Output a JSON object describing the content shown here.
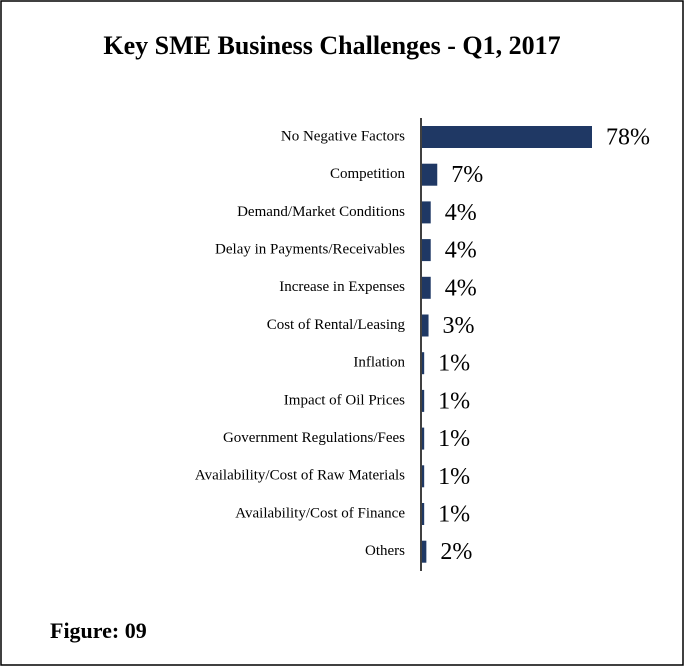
{
  "chart_data": {
    "type": "bar",
    "orientation": "horizontal",
    "title": "Key SME Business Challenges  - Q1, 2017",
    "categories": [
      "No Negative Factors",
      "Competition",
      "Demand/Market Conditions",
      "Delay in Payments/Receivables",
      "Increase in Expenses",
      "Cost of Rental/Leasing",
      "Inflation",
      "Impact of Oil Prices",
      "Government Regulations/Fees",
      "Availability/Cost of Raw Materials",
      "Availability/Cost of Finance",
      "Others"
    ],
    "values": [
      78,
      7,
      4,
      4,
      4,
      3,
      1,
      1,
      1,
      1,
      1,
      2
    ],
    "value_labels": [
      "78%",
      "7%",
      "4%",
      "4%",
      "4%",
      "3%",
      "1%",
      "1%",
      "1%",
      "1%",
      "1%",
      "2%"
    ],
    "color": "#1f3864",
    "figure_label": "Figure: 09"
  }
}
